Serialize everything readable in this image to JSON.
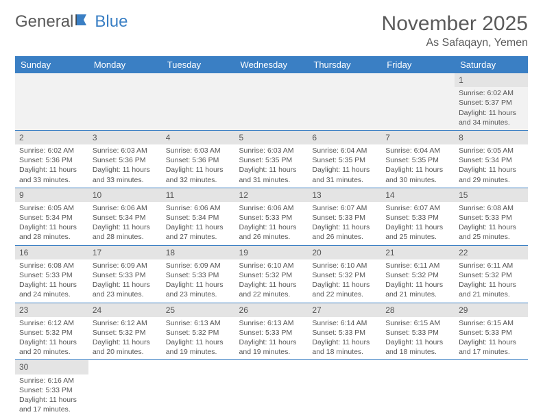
{
  "logo": {
    "general": "General",
    "blue": "Blue"
  },
  "title": "November 2025",
  "location": "As Safaqayn, Yemen",
  "colors": {
    "header_bg": "#3a7fc4",
    "header_text": "#ffffff",
    "daynum_bg": "#e4e4e4",
    "rule": "#3a7fc4",
    "text": "#555555"
  },
  "weekdays": [
    "Sunday",
    "Monday",
    "Tuesday",
    "Wednesday",
    "Thursday",
    "Friday",
    "Saturday"
  ],
  "weeks": [
    [
      null,
      null,
      null,
      null,
      null,
      null,
      {
        "n": "1",
        "sr": "Sunrise: 6:02 AM",
        "ss": "Sunset: 5:37 PM",
        "dl": "Daylight: 11 hours and 34 minutes."
      }
    ],
    [
      {
        "n": "2",
        "sr": "Sunrise: 6:02 AM",
        "ss": "Sunset: 5:36 PM",
        "dl": "Daylight: 11 hours and 33 minutes."
      },
      {
        "n": "3",
        "sr": "Sunrise: 6:03 AM",
        "ss": "Sunset: 5:36 PM",
        "dl": "Daylight: 11 hours and 33 minutes."
      },
      {
        "n": "4",
        "sr": "Sunrise: 6:03 AM",
        "ss": "Sunset: 5:36 PM",
        "dl": "Daylight: 11 hours and 32 minutes."
      },
      {
        "n": "5",
        "sr": "Sunrise: 6:03 AM",
        "ss": "Sunset: 5:35 PM",
        "dl": "Daylight: 11 hours and 31 minutes."
      },
      {
        "n": "6",
        "sr": "Sunrise: 6:04 AM",
        "ss": "Sunset: 5:35 PM",
        "dl": "Daylight: 11 hours and 31 minutes."
      },
      {
        "n": "7",
        "sr": "Sunrise: 6:04 AM",
        "ss": "Sunset: 5:35 PM",
        "dl": "Daylight: 11 hours and 30 minutes."
      },
      {
        "n": "8",
        "sr": "Sunrise: 6:05 AM",
        "ss": "Sunset: 5:34 PM",
        "dl": "Daylight: 11 hours and 29 minutes."
      }
    ],
    [
      {
        "n": "9",
        "sr": "Sunrise: 6:05 AM",
        "ss": "Sunset: 5:34 PM",
        "dl": "Daylight: 11 hours and 28 minutes."
      },
      {
        "n": "10",
        "sr": "Sunrise: 6:06 AM",
        "ss": "Sunset: 5:34 PM",
        "dl": "Daylight: 11 hours and 28 minutes."
      },
      {
        "n": "11",
        "sr": "Sunrise: 6:06 AM",
        "ss": "Sunset: 5:34 PM",
        "dl": "Daylight: 11 hours and 27 minutes."
      },
      {
        "n": "12",
        "sr": "Sunrise: 6:06 AM",
        "ss": "Sunset: 5:33 PM",
        "dl": "Daylight: 11 hours and 26 minutes."
      },
      {
        "n": "13",
        "sr": "Sunrise: 6:07 AM",
        "ss": "Sunset: 5:33 PM",
        "dl": "Daylight: 11 hours and 26 minutes."
      },
      {
        "n": "14",
        "sr": "Sunrise: 6:07 AM",
        "ss": "Sunset: 5:33 PM",
        "dl": "Daylight: 11 hours and 25 minutes."
      },
      {
        "n": "15",
        "sr": "Sunrise: 6:08 AM",
        "ss": "Sunset: 5:33 PM",
        "dl": "Daylight: 11 hours and 25 minutes."
      }
    ],
    [
      {
        "n": "16",
        "sr": "Sunrise: 6:08 AM",
        "ss": "Sunset: 5:33 PM",
        "dl": "Daylight: 11 hours and 24 minutes."
      },
      {
        "n": "17",
        "sr": "Sunrise: 6:09 AM",
        "ss": "Sunset: 5:33 PM",
        "dl": "Daylight: 11 hours and 23 minutes."
      },
      {
        "n": "18",
        "sr": "Sunrise: 6:09 AM",
        "ss": "Sunset: 5:33 PM",
        "dl": "Daylight: 11 hours and 23 minutes."
      },
      {
        "n": "19",
        "sr": "Sunrise: 6:10 AM",
        "ss": "Sunset: 5:32 PM",
        "dl": "Daylight: 11 hours and 22 minutes."
      },
      {
        "n": "20",
        "sr": "Sunrise: 6:10 AM",
        "ss": "Sunset: 5:32 PM",
        "dl": "Daylight: 11 hours and 22 minutes."
      },
      {
        "n": "21",
        "sr": "Sunrise: 6:11 AM",
        "ss": "Sunset: 5:32 PM",
        "dl": "Daylight: 11 hours and 21 minutes."
      },
      {
        "n": "22",
        "sr": "Sunrise: 6:11 AM",
        "ss": "Sunset: 5:32 PM",
        "dl": "Daylight: 11 hours and 21 minutes."
      }
    ],
    [
      {
        "n": "23",
        "sr": "Sunrise: 6:12 AM",
        "ss": "Sunset: 5:32 PM",
        "dl": "Daylight: 11 hours and 20 minutes."
      },
      {
        "n": "24",
        "sr": "Sunrise: 6:12 AM",
        "ss": "Sunset: 5:32 PM",
        "dl": "Daylight: 11 hours and 20 minutes."
      },
      {
        "n": "25",
        "sr": "Sunrise: 6:13 AM",
        "ss": "Sunset: 5:32 PM",
        "dl": "Daylight: 11 hours and 19 minutes."
      },
      {
        "n": "26",
        "sr": "Sunrise: 6:13 AM",
        "ss": "Sunset: 5:33 PM",
        "dl": "Daylight: 11 hours and 19 minutes."
      },
      {
        "n": "27",
        "sr": "Sunrise: 6:14 AM",
        "ss": "Sunset: 5:33 PM",
        "dl": "Daylight: 11 hours and 18 minutes."
      },
      {
        "n": "28",
        "sr": "Sunrise: 6:15 AM",
        "ss": "Sunset: 5:33 PM",
        "dl": "Daylight: 11 hours and 18 minutes."
      },
      {
        "n": "29",
        "sr": "Sunrise: 6:15 AM",
        "ss": "Sunset: 5:33 PM",
        "dl": "Daylight: 11 hours and 17 minutes."
      }
    ],
    [
      {
        "n": "30",
        "sr": "Sunrise: 6:16 AM",
        "ss": "Sunset: 5:33 PM",
        "dl": "Daylight: 11 hours and 17 minutes."
      },
      null,
      null,
      null,
      null,
      null,
      null
    ]
  ]
}
